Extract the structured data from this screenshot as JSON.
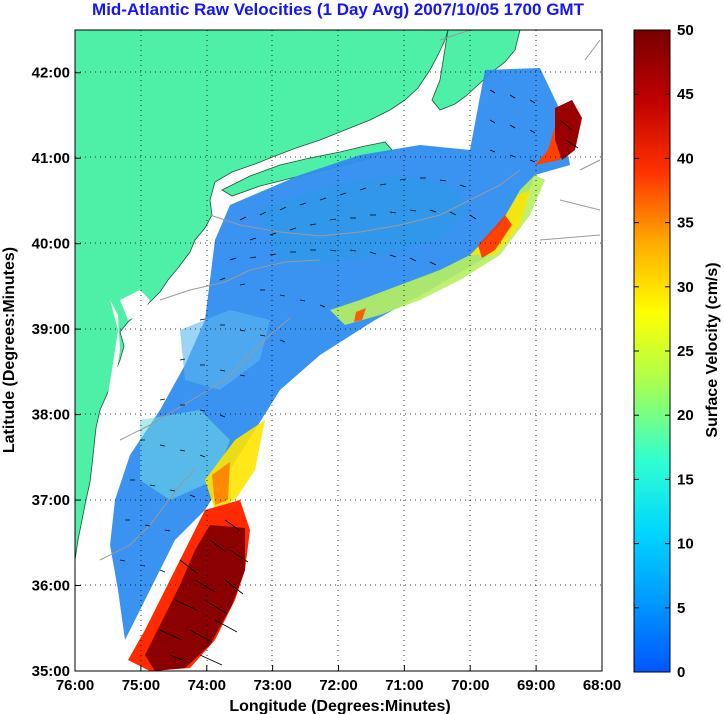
{
  "title": "Mid-Atlantic Raw Velocities (1 Day Avg) 2007/10/05 1700 GMT",
  "xlabel": "Longitude (Degrees:Minutes)",
  "ylabel": "Latitude (Degrees:Minutes)",
  "colorbar_label": "Surface Velocity (cm/s)",
  "colors": {
    "land": "#4ef0a8",
    "title": "#1414ff",
    "grid": "#000000",
    "bathymetry": "#9a9a9a"
  },
  "chart_data": {
    "type": "heatmap",
    "x_ticks": [
      "76:00",
      "75:00",
      "74:00",
      "73:00",
      "72:00",
      "71:00",
      "70:00",
      "69:00",
      "68:00"
    ],
    "x_tick_values": [
      -76,
      -75,
      -74,
      -73,
      -72,
      -71,
      -70,
      -69,
      -68
    ],
    "y_ticks": [
      "42:00",
      "41:00",
      "40:00",
      "39:00",
      "38:00",
      "37:00",
      "36:00",
      "35:00"
    ],
    "y_tick_values": [
      42,
      41,
      40,
      39,
      38,
      37,
      36,
      35
    ],
    "xlim": [
      -76,
      -68
    ],
    "ylim": [
      35,
      42.5
    ],
    "grid": true,
    "colorbar": {
      "ticks": [
        "50",
        "45",
        "40",
        "35",
        "30",
        "25",
        "20",
        "15",
        "10",
        "5",
        "0"
      ],
      "tick_values": [
        50,
        45,
        40,
        35,
        30,
        25,
        20,
        15,
        10,
        5,
        0
      ],
      "range": [
        0,
        50
      ],
      "position": "right"
    },
    "colormap_stops": [
      "#0055ff",
      "#0099ff",
      "#00d8ff",
      "#30ffd0",
      "#a8ff50",
      "#ffff00",
      "#ffaa00",
      "#ff3000",
      "#c00000",
      "#780000"
    ]
  }
}
